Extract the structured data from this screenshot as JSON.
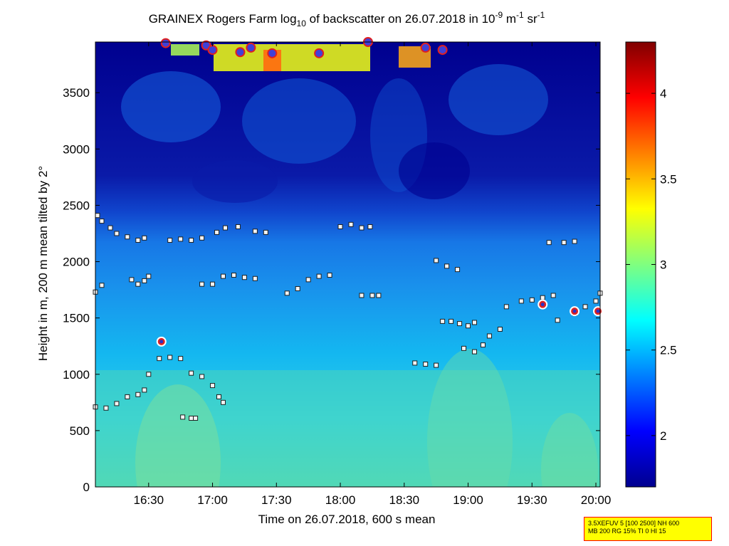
{
  "chart_data": {
    "type": "heatmap",
    "title": {
      "prefix": "GRAINEX Rogers Farm log",
      "prefix_sub": "10",
      "middle": " of backscatter on 26.07.2018 in 10",
      "exp1": "-9",
      "unit1": " m",
      "exp2": "-1",
      "unit2": " sr",
      "exp3": "-1"
    },
    "xlabel": "Time on 26.07.2018, 600 s mean",
    "ylabel": "Height in m, 200 m mean tilted by 2°",
    "xlim": [
      "16:05",
      "20:02"
    ],
    "ylim": [
      0,
      3950
    ],
    "x_ticks": [
      "16:30",
      "17:00",
      "17:30",
      "18:00",
      "18:30",
      "19:00",
      "19:30",
      "20:00"
    ],
    "y_ticks": [
      "0",
      "500",
      "1000",
      "1500",
      "2000",
      "2500",
      "3000",
      "3500"
    ],
    "colorbar": {
      "range": [
        1.7,
        4.3
      ],
      "ticks": [
        "2",
        "2.5",
        "3",
        "3.5",
        "4"
      ],
      "colormap": [
        "#00008f",
        "#0000ff",
        "#00ffff",
        "#ffff00",
        "#ff0000",
        "#800000"
      ]
    },
    "info_box": {
      "line1": "3.5XEFUV 5 [100 2500] NH 600",
      "line2": "MB 200 RG 15% TI 0 HI 15",
      "border_color": "#ff0000",
      "fill_color": "#ffff00"
    },
    "layer_series": [
      {
        "points": [
          [
            "16:05",
            710
          ],
          [
            "16:10",
            700
          ],
          [
            "16:15",
            740
          ],
          [
            "16:20",
            800
          ],
          [
            "16:25",
            820
          ],
          [
            "16:28",
            860
          ],
          [
            "16:30",
            1000
          ],
          [
            "16:35",
            1140
          ],
          [
            "16:40",
            1150
          ],
          [
            "16:45",
            1140
          ],
          [
            "16:50",
            1010
          ],
          [
            "16:55",
            980
          ],
          [
            "17:00",
            900
          ],
          [
            "17:03",
            800
          ],
          [
            "17:05",
            750
          ]
        ]
      },
      {
        "points": [
          [
            "16:05",
            1730
          ],
          [
            "16:08",
            1790
          ],
          [
            "16:22",
            1840
          ],
          [
            "16:25",
            1800
          ],
          [
            "16:28",
            1830
          ],
          [
            "16:30",
            1870
          ]
        ]
      },
      {
        "points": [
          [
            "16:06",
            2410
          ],
          [
            "16:08",
            2360
          ],
          [
            "16:12",
            2300
          ],
          [
            "16:15",
            2250
          ],
          [
            "16:20",
            2220
          ],
          [
            "16:25",
            2190
          ],
          [
            "16:28",
            2210
          ]
        ]
      },
      {
        "points": [
          [
            "16:40",
            2190
          ],
          [
            "16:45",
            2200
          ],
          [
            "16:50",
            2190
          ],
          [
            "16:55",
            2210
          ],
          [
            "17:02",
            2260
          ],
          [
            "17:06",
            2300
          ],
          [
            "17:12",
            2310
          ],
          [
            "17:20",
            2270
          ],
          [
            "17:25",
            2260
          ]
        ]
      },
      {
        "points": [
          [
            "16:55",
            1800
          ],
          [
            "17:00",
            1800
          ],
          [
            "17:05",
            1870
          ],
          [
            "17:10",
            1880
          ],
          [
            "17:15",
            1860
          ],
          [
            "17:20",
            1850
          ]
        ]
      },
      {
        "points": [
          [
            "17:35",
            1720
          ],
          [
            "17:40",
            1760
          ],
          [
            "17:45",
            1840
          ],
          [
            "17:50",
            1870
          ],
          [
            "17:55",
            1880
          ]
        ]
      },
      {
        "points": [
          [
            "18:00",
            2310
          ],
          [
            "18:05",
            2330
          ],
          [
            "18:10",
            2300
          ],
          [
            "18:14",
            2310
          ]
        ]
      },
      {
        "points": [
          [
            "18:10",
            1700
          ],
          [
            "18:15",
            1700
          ],
          [
            "18:18",
            1700
          ]
        ]
      },
      {
        "points": [
          [
            "18:35",
            1100
          ],
          [
            "18:40",
            1090
          ],
          [
            "18:45",
            1080
          ]
        ]
      },
      {
        "points": [
          [
            "18:45",
            2010
          ],
          [
            "18:50",
            1960
          ],
          [
            "18:55",
            1930
          ]
        ]
      },
      {
        "points": [
          [
            "18:48",
            1470
          ],
          [
            "18:52",
            1470
          ],
          [
            "18:56",
            1450
          ],
          [
            "19:00",
            1430
          ],
          [
            "19:03",
            1460
          ]
        ]
      },
      {
        "points": [
          [
            "18:58",
            1230
          ],
          [
            "19:03",
            1200
          ],
          [
            "19:07",
            1260
          ],
          [
            "19:10",
            1340
          ],
          [
            "19:15",
            1400
          ]
        ]
      },
      {
        "points": [
          [
            "19:18",
            1600
          ],
          [
            "19:25",
            1650
          ],
          [
            "19:30",
            1660
          ],
          [
            "19:35",
            1680
          ],
          [
            "19:40",
            1700
          ]
        ]
      },
      {
        "points": [
          [
            "19:38",
            2170
          ],
          [
            "19:45",
            2170
          ],
          [
            "19:50",
            2180
          ]
        ]
      },
      {
        "points": [
          [
            "19:42",
            1480
          ],
          [
            "19:50",
            1540
          ],
          [
            "19:55",
            1600
          ],
          [
            "20:00",
            1650
          ],
          [
            "20:02",
            1720
          ]
        ]
      },
      {
        "points": [
          [
            "16:46",
            620
          ],
          [
            "16:50",
            610
          ],
          [
            "16:52",
            610
          ]
        ]
      }
    ],
    "aerosol_top_markers": [
      [
        "16:38",
        3940
      ],
      [
        "16:57",
        3920
      ],
      [
        "17:00",
        3880
      ],
      [
        "17:13",
        3860
      ],
      [
        "17:18",
        3900
      ],
      [
        "17:28",
        3850
      ],
      [
        "17:50",
        3850
      ],
      [
        "18:13",
        3950
      ],
      [
        "18:40",
        3900
      ],
      [
        "18:48",
        3880
      ]
    ],
    "cloud_markers": [
      [
        "16:36",
        1290
      ],
      [
        "19:35",
        1620
      ],
      [
        "19:50",
        1560
      ],
      [
        "20:01",
        1560
      ]
    ]
  }
}
